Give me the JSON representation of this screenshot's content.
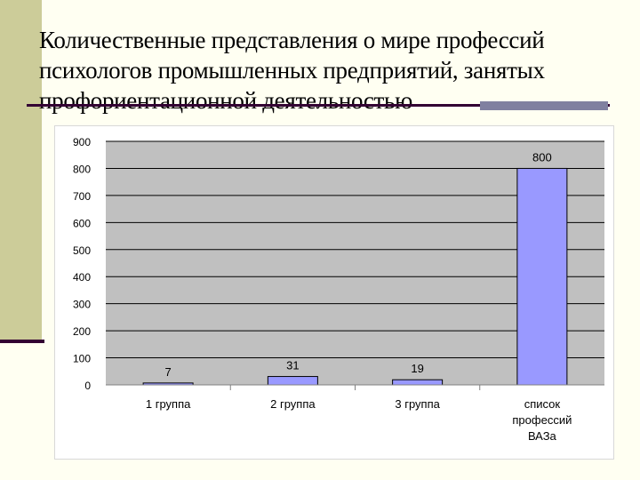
{
  "slide": {
    "title": "Количественные представления о мире профессий психологов промышленных предприятий, занятых профориентационной деятельностью"
  },
  "colors": {
    "sidebar": "#cccc99",
    "accent_line": "#330033",
    "plot_background": "#c0c0c0",
    "bar_fill": "#9999ff"
  },
  "chart_data": {
    "type": "bar",
    "categories": [
      "1 группа",
      "2 группа",
      "3 группа",
      "список профессий ВАЗа"
    ],
    "values": [
      7,
      31,
      19,
      800
    ],
    "data_labels": [
      "7",
      "31",
      "19",
      "800"
    ],
    "ylim": [
      0,
      900
    ],
    "yticks": [
      0,
      100,
      200,
      300,
      400,
      500,
      600,
      700,
      800,
      900
    ],
    "title": "",
    "xlabel": "",
    "ylabel": "",
    "grid": true,
    "legend": "none"
  }
}
